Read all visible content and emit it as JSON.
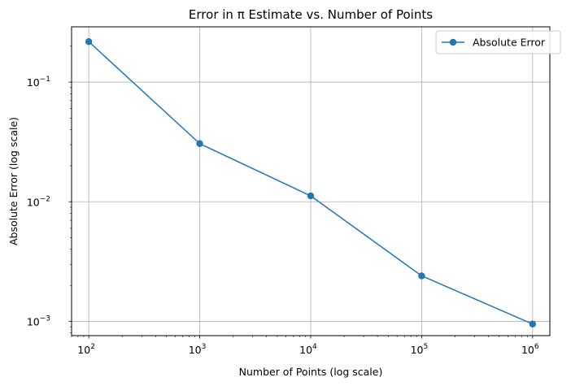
{
  "chart_data": {
    "type": "line",
    "title": "Error in π Estimate vs. Number of Points",
    "xlabel": "Number of Points (log scale)",
    "ylabel": "Absolute Error (log scale)",
    "xscale": "log",
    "yscale": "log",
    "xlim": [
      70,
      1430000
    ],
    "ylim": [
      0.00076,
      0.29
    ],
    "grid": true,
    "legend_position": "top-right",
    "x_ticks": [
      {
        "base": "10",
        "exp": "2",
        "value": 100
      },
      {
        "base": "10",
        "exp": "3",
        "value": 1000
      },
      {
        "base": "10",
        "exp": "4",
        "value": 10000
      },
      {
        "base": "10",
        "exp": "5",
        "value": 100000
      },
      {
        "base": "10",
        "exp": "6",
        "value": 1000000
      }
    ],
    "y_ticks": [
      {
        "base": "10",
        "exp": "−1",
        "value": 0.1
      },
      {
        "base": "10",
        "exp": "−2",
        "value": 0.01
      },
      {
        "base": "10",
        "exp": "−3",
        "value": 0.001
      }
    ],
    "series": [
      {
        "name": "Absolute Error",
        "color": "#1f77b4",
        "marker": "circle",
        "x": [
          100,
          1000,
          10000,
          100000,
          1000000
        ],
        "y": [
          0.218,
          0.0306,
          0.0112,
          0.0024,
          0.00095
        ]
      }
    ]
  }
}
